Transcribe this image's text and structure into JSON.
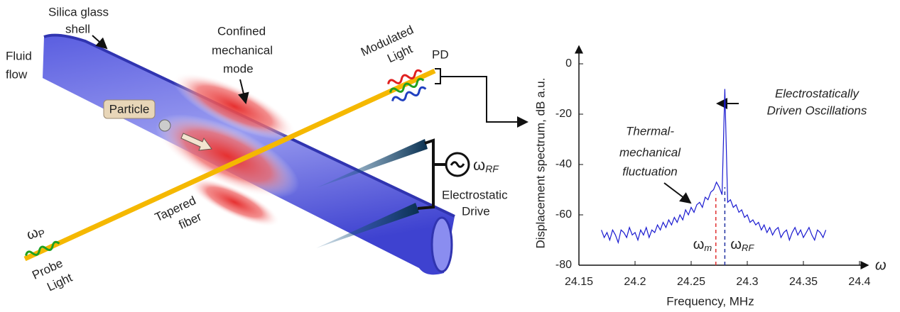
{
  "diagram": {
    "silica_shell": [
      "Silica glass",
      "shell"
    ],
    "fluid_flow": [
      "Fluid",
      "flow"
    ],
    "confined_mode": [
      "Confined",
      "mechanical",
      "mode"
    ],
    "modulated_light": [
      "Modulated",
      "Light"
    ],
    "pd": "PD",
    "particle": "Particle",
    "probe_freq": {
      "symbol": "ω",
      "sub": "P"
    },
    "drive_freq": {
      "symbol": "ω",
      "sub": "RF"
    },
    "drive": [
      "Electrostatic",
      "Drive"
    ],
    "tapered_fiber": [
      "Tapered",
      "fiber"
    ],
    "probe_light": [
      "Probe",
      "Light"
    ]
  },
  "chart_data": {
    "type": "line",
    "xlabel": "Frequency, MHz",
    "ylabel": "Displacement spectrum, dB a.u.",
    "x_axis_symbol": "ω",
    "xlim": [
      24.15,
      24.4
    ],
    "xticks": [
      24.15,
      24.2,
      24.25,
      24.3,
      24.35,
      24.4
    ],
    "ylim": [
      -80,
      0
    ],
    "yticks": [
      0,
      -20,
      -40,
      -60,
      -80
    ],
    "x": [
      24.17,
      24.1725,
      24.175,
      24.1775,
      24.18,
      24.1825,
      24.185,
      24.1875,
      24.19,
      24.1925,
      24.195,
      24.1975,
      24.2,
      24.2025,
      24.205,
      24.2075,
      24.21,
      24.2125,
      24.215,
      24.2175,
      24.22,
      24.2225,
      24.225,
      24.2275,
      24.23,
      24.2325,
      24.235,
      24.2375,
      24.24,
      24.2425,
      24.245,
      24.2475,
      24.25,
      24.2525,
      24.255,
      24.2575,
      24.26,
      24.2625,
      24.265,
      24.2675,
      24.27,
      24.2725,
      24.275,
      24.2775,
      24.28,
      24.2825,
      24.285,
      24.2875,
      24.29,
      24.2925,
      24.295,
      24.2975,
      24.3,
      24.3025,
      24.305,
      24.3075,
      24.31,
      24.3125,
      24.315,
      24.3175,
      24.32,
      24.3225,
      24.325,
      24.3275,
      24.33,
      24.3325,
      24.335,
      24.3375,
      24.34,
      24.3425,
      24.345,
      24.3475,
      24.35,
      24.3525,
      24.355,
      24.3575,
      24.36,
      24.3625,
      24.365,
      24.3675,
      24.37
    ],
    "series": [
      {
        "color": "#1a1ad0",
        "values": [
          -66,
          -69,
          -67,
          -70,
          -66,
          -68,
          -71,
          -66,
          -67,
          -69,
          -65,
          -68,
          -67,
          -70,
          -66,
          -68,
          -65,
          -69,
          -66,
          -67,
          -64,
          -66,
          -63,
          -65,
          -62,
          -64,
          -61,
          -63,
          -60,
          -62,
          -58,
          -60,
          -57,
          -59,
          -56,
          -55,
          -57,
          -53,
          -54,
          -51,
          -50,
          -47,
          -49,
          -52,
          -10,
          -55,
          -54,
          -57,
          -56,
          -59,
          -58,
          -61,
          -60,
          -63,
          -62,
          -64,
          -63,
          -66,
          -64,
          -67,
          -65,
          -68,
          -66,
          -65,
          -69,
          -67,
          -66,
          -70,
          -67,
          -65,
          -68,
          -66,
          -69,
          -67,
          -65,
          -68,
          -70,
          -66,
          -67,
          -69,
          -66
        ]
      }
    ],
    "markers": [
      {
        "x": 24.272,
        "y": -52,
        "color": "#e03030",
        "symbol": "ω",
        "sub": "m"
      },
      {
        "x": 24.28,
        "y": -49,
        "color": "#2030a0",
        "symbol": "ω",
        "sub": "RF"
      }
    ],
    "annotations": [
      {
        "lines": [
          "Electrostatically",
          "Driven Oscillations"
        ]
      },
      {
        "lines": [
          "Thermal-",
          "mechanical",
          "fluctuation"
        ]
      }
    ]
  }
}
